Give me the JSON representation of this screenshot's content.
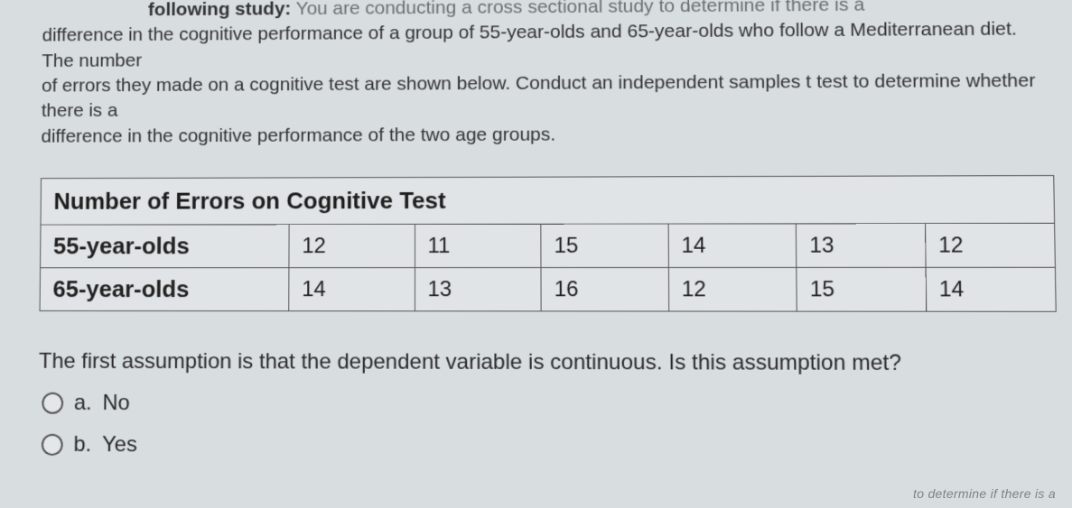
{
  "prompt": {
    "lead_bold": "following study:",
    "line1_rest": " You are conducting a cross sectional study to determine if there is a",
    "line2_pre": "difference in the cognitive performance of a group of 55-year-olds and 65-year-olds who follow a Mediterranean diet. The number",
    "line3": "of errors they made on a cognitive test are shown below. Conduct an independent samples t test to determine whether there is a",
    "line4": "difference in the cognitive performance of the two age groups."
  },
  "table": {
    "title": "Number of Errors on Cognitive Test",
    "rows": [
      {
        "label": "55-year-olds",
        "cells": [
          "12",
          "11",
          "15",
          "14",
          "13",
          "12"
        ]
      },
      {
        "label": "65-year-olds",
        "cells": [
          "14",
          "13",
          "16",
          "12",
          "15",
          "14"
        ]
      }
    ]
  },
  "question": "The first assumption is that the dependent variable is continuous. Is this assumption met?",
  "options": {
    "a": {
      "letter": "a.",
      "text": "No"
    },
    "b": {
      "letter": "b.",
      "text": "Yes"
    }
  },
  "corner": "to determine if there is a"
}
